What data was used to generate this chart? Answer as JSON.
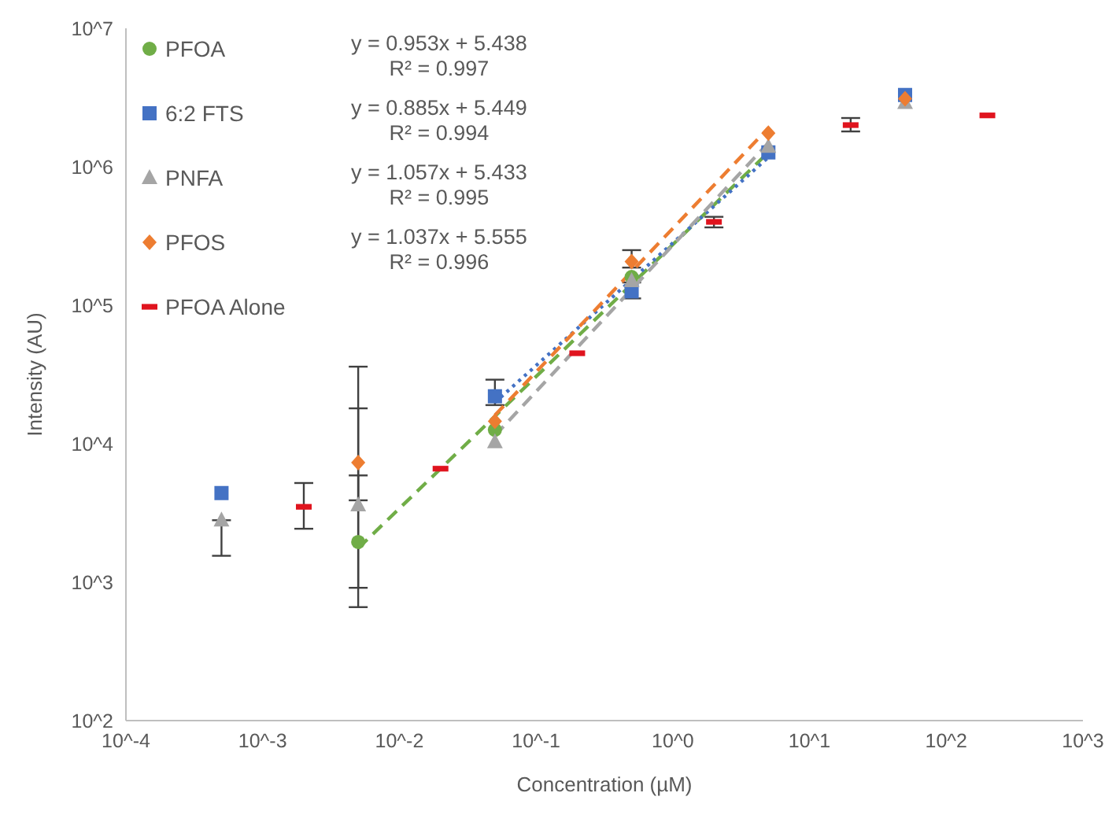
{
  "chart_data": {
    "type": "scatter",
    "xlabel": "Concentration (µM)",
    "ylabel": "Intensity (AU)",
    "log": "xy",
    "grid": false,
    "legend": "top left",
    "xlim": [
      0.0001,
      1000
    ],
    "xticks": [
      {
        "value": 0.0001,
        "label": "10^-4"
      },
      {
        "value": 0.001,
        "label": "10^-3"
      },
      {
        "value": 0.01,
        "label": "10^-2"
      },
      {
        "value": 0.1,
        "label": "10^-1"
      },
      {
        "value": 1,
        "label": "10^0"
      },
      {
        "value": 10,
        "label": "10^1"
      },
      {
        "value": 100,
        "label": "10^2"
      },
      {
        "value": 1000,
        "label": "10^3"
      }
    ],
    "ylim": [
      100,
      10000000
    ],
    "yticks": [
      {
        "value": 100,
        "label": "10^2"
      },
      {
        "value": 1000,
        "label": "10^3"
      },
      {
        "value": 10000,
        "label": "10^4"
      },
      {
        "value": 100000,
        "label": "10^5"
      },
      {
        "value": 1000000,
        "label": "10^6"
      },
      {
        "value": 10000000,
        "label": "10^7"
      }
    ],
    "annotations": [
      "y = 0.953x + 5.438",
      "R² = 0.997",
      "y = 0.885x + 5.449",
      "R² = 0.994",
      "y = 1.057x + 5.433",
      "R² = 0.995",
      "y = 1.037x + 5.555",
      "R² = 0.996"
    ],
    "series": [
      {
        "name": "PFOA",
        "color": "#70ad47",
        "marker": "circle",
        "x": [
          0.005,
          0.05,
          0.5
        ],
        "values": [
          1950,
          12600,
          160000
        ],
        "errors": [
          [
            660,
            36000
          ],
          null,
          null
        ]
      },
      {
        "name": "6:2 FTS",
        "color": "#4472c4",
        "marker": "square",
        "x": [
          0.0005,
          0.05,
          0.5,
          5,
          50
        ],
        "values": [
          4400,
          22000,
          126000,
          1270000,
          3300000
        ],
        "errors": [
          null,
          [
            19000,
            29000
          ],
          [
            112000,
            146000
          ],
          null,
          null
        ]
      },
      {
        "name": "PNFA",
        "color": "#a5a5a5",
        "marker": "triangle",
        "x": [
          0.0005,
          0.005,
          0.05,
          0.5,
          5,
          50
        ],
        "values": [
          2800,
          3600,
          10300,
          150000,
          1400000,
          2900000
        ],
        "errors": [
          [
            1550,
            2800
          ],
          [
            910,
            5900
          ],
          null,
          null,
          null,
          null
        ]
      },
      {
        "name": "PFOS",
        "color": "#ed7d31",
        "marker": "diamond",
        "x": [
          0.005,
          0.05,
          0.5,
          5,
          50
        ],
        "values": [
          7300,
          14500,
          207000,
          1750000,
          3100000
        ],
        "errors": [
          [
            3900,
            18000
          ],
          null,
          [
            187000,
            250000
          ],
          null,
          null
        ]
      },
      {
        "name": "PFOA Alone",
        "color": "#e0141e",
        "x": [
          0.002,
          0.02,
          0.2,
          2,
          20,
          200
        ],
        "values": [
          3500,
          6600,
          45000,
          400000,
          2000000,
          2350000
        ],
        "errors": [
          [
            2430,
            5200
          ],
          null,
          null,
          [
            365000,
            435000
          ],
          [
            1800000,
            2250000
          ],
          null
        ]
      },
      {
        "type": "line",
        "color": "#70ad47",
        "line_style": "dashed",
        "x": [
          0.005,
          5
        ],
        "values": [
          1758,
          1270000
        ]
      },
      {
        "type": "line",
        "color": "#4472c4",
        "line_style": "dotted",
        "x": [
          0.05,
          5
        ],
        "values": [
          19850,
          1170000
        ]
      },
      {
        "type": "line",
        "color": "#a5a5a5",
        "line_style": "dashed",
        "x": [
          0.05,
          5
        ],
        "values": [
          11430,
          1486000
        ]
      },
      {
        "type": "line",
        "color": "#ed7d31",
        "line_style": "dashed",
        "x": [
          0.05,
          5
        ],
        "values": [
          16060,
          1905000
        ]
      }
    ]
  }
}
